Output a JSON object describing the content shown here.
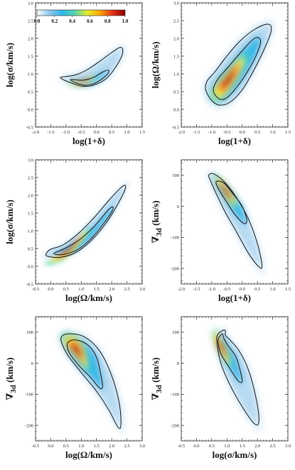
{
  "colorbar": {
    "ticks": [
      "0.0",
      "0.2",
      "0.4",
      "0.6",
      "0.8",
      "1.0"
    ],
    "range": [
      0.0,
      1.0
    ],
    "colormap": [
      "#ffffff",
      "#8ec8f0",
      "#2fb7e8",
      "#55d6b0",
      "#e9ee2a",
      "#ffa500",
      "#e8301a",
      "#8b0000"
    ]
  },
  "panels_order": [
    "sigma_vs_delta",
    "omega_vs_delta",
    "sigma_vs_omega",
    "v3d_vs_delta",
    "v3d_vs_omega",
    "v3d_vs_sigma"
  ],
  "axis_text": {
    "log_one_plus_delta": "log(1+δ)",
    "log_sigma": "log(σ/km/s)",
    "log_omega": "log(Ω/km/s)",
    "v3d_symbol": "∇",
    "v3d_subscript": "3d",
    "v3d_units": " (km/s)"
  },
  "chart_data": [
    {
      "id": "sigma_vs_delta",
      "type": "heatmap",
      "xlabel_key": "log_one_plus_delta",
      "ylabel_key": "log_sigma",
      "xlim": [
        -2.0,
        1.5
      ],
      "ylim": [
        -0.5,
        3.0
      ],
      "xticks": [
        -2.0,
        -1.5,
        -1.0,
        -0.5,
        0.0,
        0.5,
        1.0,
        1.5
      ],
      "yticks": [
        -0.5,
        0.0,
        0.5,
        1.0,
        1.5,
        2.0,
        2.5,
        3.0
      ],
      "density_peak": {
        "x": -0.45,
        "y": 0.8
      },
      "contour_outer": [
        [
          -1.18,
          0.9
        ],
        [
          -1.05,
          0.82
        ],
        [
          -0.75,
          0.72
        ],
        [
          -0.45,
          0.65
        ],
        [
          -0.1,
          0.68
        ],
        [
          0.3,
          0.85
        ],
        [
          0.6,
          1.15
        ],
        [
          0.85,
          1.55
        ],
        [
          0.8,
          1.75
        ],
        [
          0.5,
          1.6
        ],
        [
          0.1,
          1.35
        ],
        [
          -0.3,
          1.12
        ],
        [
          -0.65,
          0.98
        ],
        [
          -0.95,
          0.93
        ]
      ],
      "contour_inner": [
        [
          -0.85,
          0.84
        ],
        [
          -0.6,
          0.72
        ],
        [
          -0.3,
          0.68
        ],
        [
          0.05,
          0.78
        ],
        [
          0.35,
          0.98
        ],
        [
          0.4,
          1.1
        ],
        [
          0.2,
          1.05
        ],
        [
          -0.1,
          0.9
        ],
        [
          -0.45,
          0.82
        ]
      ]
    },
    {
      "id": "omega_vs_delta",
      "type": "heatmap",
      "xlabel_key": "log_one_plus_delta",
      "ylabel_key": "log_omega",
      "xlim": [
        -2.0,
        1.5
      ],
      "ylim": [
        -0.5,
        3.0
      ],
      "xticks": [
        -2.0,
        -1.5,
        -1.0,
        -0.5,
        0.0,
        0.5,
        1.0,
        1.5
      ],
      "yticks": [
        -0.5,
        0.0,
        0.5,
        1.0,
        1.5,
        2.0,
        2.5,
        3.0
      ],
      "density_peak": {
        "x": -0.45,
        "y": 0.85
      },
      "contour_outer": [
        [
          -1.2,
          0.55
        ],
        [
          -1.0,
          0.25
        ],
        [
          -0.75,
          0.12
        ],
        [
          -0.4,
          0.2
        ],
        [
          0.0,
          0.55
        ],
        [
          0.35,
          1.05
        ],
        [
          0.7,
          1.65
        ],
        [
          0.95,
          2.2
        ],
        [
          0.85,
          2.4
        ],
        [
          0.4,
          2.25
        ],
        [
          -0.1,
          1.9
        ],
        [
          -0.55,
          1.45
        ],
        [
          -0.9,
          1.05
        ],
        [
          -1.15,
          0.8
        ]
      ],
      "contour_inner": [
        [
          -0.95,
          0.55
        ],
        [
          -0.8,
          0.32
        ],
        [
          -0.55,
          0.3
        ],
        [
          -0.2,
          0.6
        ],
        [
          0.2,
          1.1
        ],
        [
          0.5,
          1.6
        ],
        [
          0.6,
          1.95
        ],
        [
          0.4,
          2.0
        ],
        [
          0.0,
          1.65
        ],
        [
          -0.45,
          1.2
        ],
        [
          -0.8,
          0.85
        ]
      ]
    },
    {
      "id": "sigma_vs_omega",
      "type": "heatmap",
      "xlabel_key": "log_omega",
      "ylabel_key": "log_sigma",
      "xlim": [
        -0.5,
        3.0
      ],
      "ylim": [
        -0.5,
        3.0
      ],
      "xticks": [
        -0.5,
        0.0,
        0.5,
        1.0,
        1.5,
        2.0,
        2.5,
        3.0
      ],
      "yticks": [
        -0.5,
        0.0,
        0.5,
        1.0,
        1.5,
        2.0,
        2.5,
        3.0
      ],
      "density_peak": {
        "x": 0.6,
        "y": 0.5
      },
      "contour_outer": [
        [
          -0.15,
          0.35
        ],
        [
          -0.1,
          0.28
        ],
        [
          0.3,
          0.25
        ],
        [
          0.8,
          0.38
        ],
        [
          1.3,
          0.7
        ],
        [
          1.8,
          1.2
        ],
        [
          2.2,
          1.75
        ],
        [
          2.45,
          2.2
        ],
        [
          2.35,
          2.25
        ],
        [
          1.9,
          1.85
        ],
        [
          1.4,
          1.35
        ],
        [
          0.9,
          0.92
        ],
        [
          0.4,
          0.6
        ],
        [
          0.0,
          0.48
        ]
      ],
      "contour_inner": [
        [
          0.1,
          0.36
        ],
        [
          0.4,
          0.33
        ],
        [
          0.9,
          0.48
        ],
        [
          1.4,
          0.85
        ],
        [
          1.9,
          1.4
        ],
        [
          2.05,
          1.65
        ],
        [
          1.9,
          1.6
        ],
        [
          1.4,
          1.1
        ],
        [
          0.9,
          0.72
        ],
        [
          0.4,
          0.48
        ]
      ]
    },
    {
      "id": "v3d_vs_delta",
      "type": "heatmap",
      "xlabel_key": "log_one_plus_delta",
      "ylabel_key": "v3d",
      "xlim": [
        -2.0,
        1.5
      ],
      "ylim": [
        -250,
        150
      ],
      "xticks": [
        -2.0,
        -1.5,
        -1.0,
        -0.5,
        0.0,
        0.5,
        1.0,
        1.5
      ],
      "yticks": [
        -200,
        -100,
        0,
        100
      ],
      "density_peak": {
        "x": -0.55,
        "y": 50
      },
      "contour_outer": [
        [
          -1.1,
          100
        ],
        [
          -0.95,
          105
        ],
        [
          -0.6,
          80
        ],
        [
          -0.2,
          30
        ],
        [
          0.2,
          -40
        ],
        [
          0.5,
          -120
        ],
        [
          0.65,
          -190
        ],
        [
          0.55,
          -195
        ],
        [
          0.2,
          -150
        ],
        [
          -0.2,
          -80
        ],
        [
          -0.55,
          -20
        ],
        [
          -0.85,
          40
        ],
        [
          -1.05,
          85
        ]
      ],
      "contour_inner": [
        [
          -0.85,
          80
        ],
        [
          -0.6,
          75
        ],
        [
          -0.3,
          40
        ],
        [
          0.0,
          0
        ],
        [
          0.15,
          -45
        ],
        [
          0.05,
          -55
        ],
        [
          -0.25,
          -25
        ],
        [
          -0.55,
          20
        ],
        [
          -0.8,
          60
        ]
      ]
    },
    {
      "id": "v3d_vs_omega",
      "type": "heatmap",
      "xlabel_key": "log_omega",
      "ylabel_key": "v3d",
      "xlim": [
        -0.5,
        3.0
      ],
      "ylim": [
        -250,
        150
      ],
      "xticks": [
        -0.5,
        0.0,
        0.5,
        1.0,
        1.5,
        2.0,
        2.5,
        3.0
      ],
      "yticks": [
        -200,
        -100,
        0,
        100
      ],
      "density_peak": {
        "x": 0.85,
        "y": 40
      },
      "contour_outer": [
        [
          0.35,
          85
        ],
        [
          0.6,
          95
        ],
        [
          1.1,
          85
        ],
        [
          1.6,
          40
        ],
        [
          2.0,
          -40
        ],
        [
          2.25,
          -130
        ],
        [
          2.3,
          -200
        ],
        [
          2.2,
          -205
        ],
        [
          1.9,
          -150
        ],
        [
          1.5,
          -90
        ],
        [
          1.0,
          -30
        ],
        [
          0.6,
          20
        ],
        [
          0.38,
          60
        ]
      ],
      "contour_inner": [
        [
          0.55,
          65
        ],
        [
          0.8,
          75
        ],
        [
          1.2,
          60
        ],
        [
          1.5,
          20
        ],
        [
          1.65,
          -40
        ],
        [
          1.7,
          -75
        ],
        [
          1.6,
          -80
        ],
        [
          1.3,
          -45
        ],
        [
          0.9,
          -5
        ],
        [
          0.6,
          35
        ]
      ]
    },
    {
      "id": "v3d_vs_sigma",
      "type": "heatmap",
      "xlabel_key": "log_sigma",
      "ylabel_key": "v3d",
      "xlim": [
        -0.5,
        3.0
      ],
      "ylim": [
        -250,
        150
      ],
      "xticks": [
        -0.5,
        0.0,
        0.5,
        1.0,
        1.5,
        2.0,
        2.5,
        3.0
      ],
      "yticks": [
        -200,
        -100,
        0,
        100
      ],
      "density_peak": {
        "x": 0.8,
        "y": 55
      },
      "contour_outer": [
        [
          0.68,
          90
        ],
        [
          0.85,
          105
        ],
        [
          0.95,
          105
        ],
        [
          0.95,
          90
        ],
        [
          1.1,
          75
        ],
        [
          1.4,
          40
        ],
        [
          1.7,
          -20
        ],
        [
          1.95,
          -110
        ],
        [
          2.05,
          -185
        ],
        [
          1.9,
          -195
        ],
        [
          1.5,
          -140
        ],
        [
          1.1,
          -70
        ],
        [
          0.8,
          0
        ],
        [
          0.68,
          60
        ]
      ],
      "contour_inner": [
        [
          0.72,
          80
        ],
        [
          0.85,
          95
        ],
        [
          0.9,
          80
        ],
        [
          1.05,
          55
        ],
        [
          1.3,
          20
        ],
        [
          1.45,
          -30
        ],
        [
          1.5,
          -60
        ],
        [
          1.35,
          -55
        ],
        [
          1.05,
          -10
        ],
        [
          0.8,
          30
        ],
        [
          0.72,
          60
        ]
      ]
    }
  ]
}
